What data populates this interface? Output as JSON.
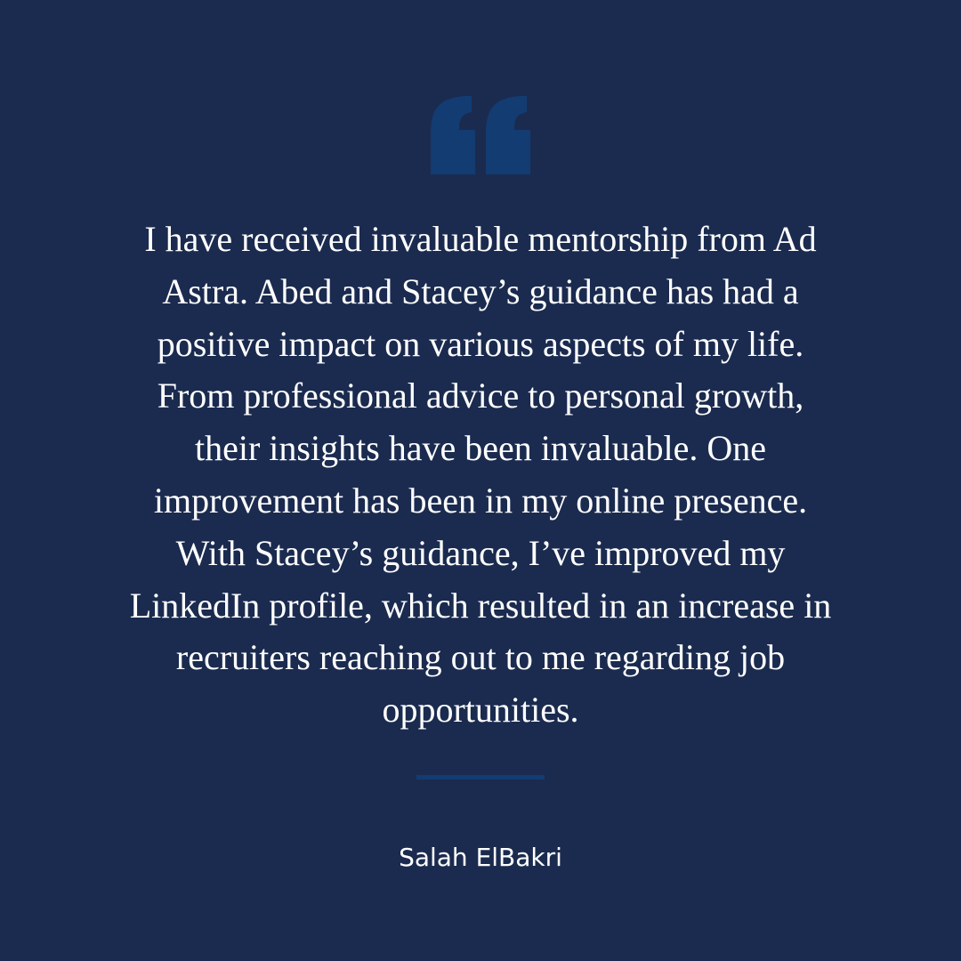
{
  "icon": "quote-icon",
  "colors": {
    "background": "#1b2b4f",
    "accent": "#123c72",
    "text": "#ffffff"
  },
  "testimonial": {
    "quote": "I have received invaluable mentorship from Ad\nAstra. Abed and Stacey’s guidance has had a\npositive impact on various aspects of my life.\nFrom professional advice to personal growth,\ntheir insights have been invaluable. One\nimprovement has been in my online presence.\nWith Stacey’s guidance, I’ve improved my\nLinkedIn profile, which resulted in an increase in\nrecruiters reaching out to me regarding job\nopportunities.",
    "author": "Salah ElBakri"
  }
}
